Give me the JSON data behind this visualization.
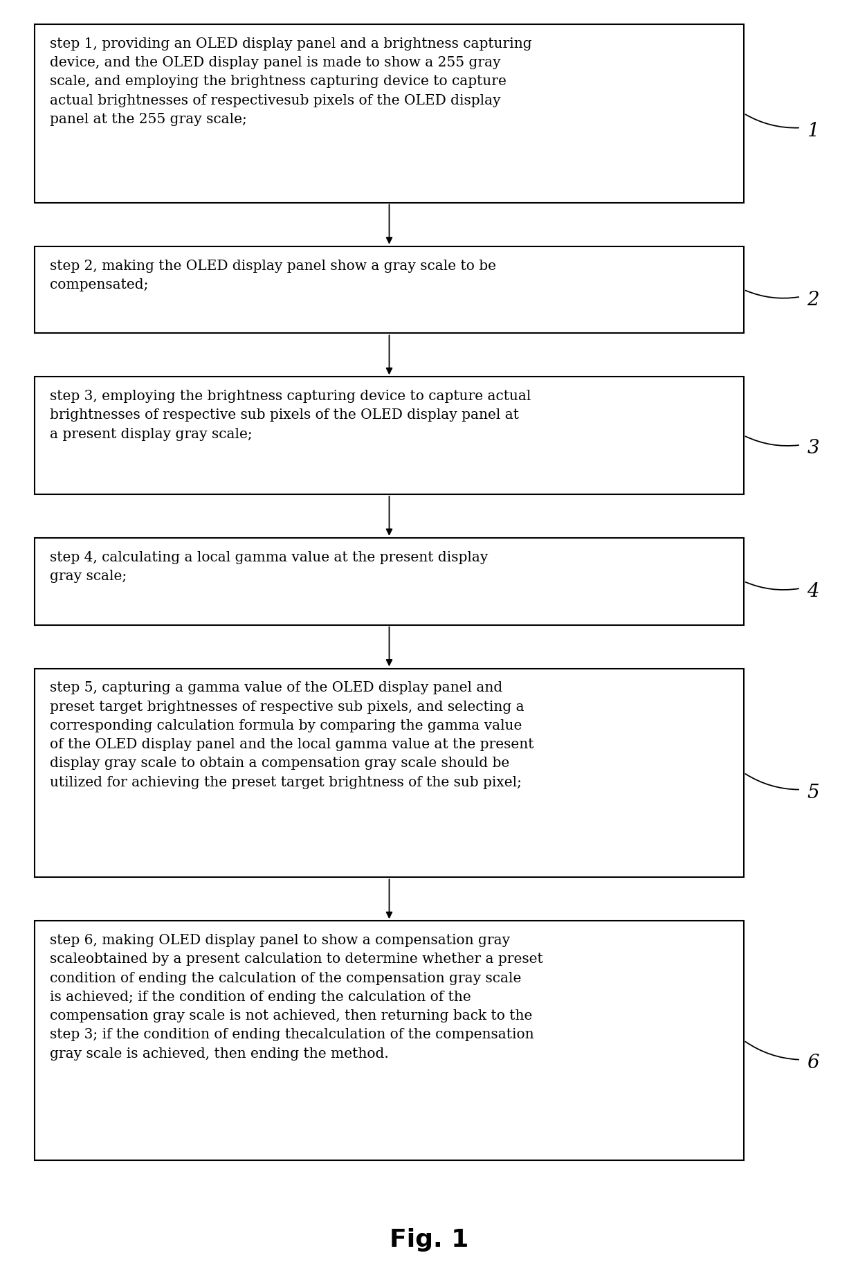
{
  "title": "Fig. 1",
  "background_color": "#ffffff",
  "box_edge_color": "#000000",
  "box_face_color": "#ffffff",
  "text_color": "#000000",
  "arrow_color": "#000000",
  "steps": [
    {
      "label": "1",
      "text": "step 1, providing an OLED display panel and a brightness capturing\ndevice, and the OLED display panel is made to show a 255 gray\nscale, and employing the brightness capturing device to capture\nactual brightnesses of respectivesub pixels of the OLED display\npanel at the 255 gray scale;"
    },
    {
      "label": "2",
      "text": "step 2, making the OLED display panel show a gray scale to be\ncompensated;"
    },
    {
      "label": "3",
      "text": "step 3, employing the brightness capturing device to capture actual\nbrightnesses of respective sub pixels of the OLED display panel at\na present display gray scale;"
    },
    {
      "label": "4",
      "text": "step 4, calculating a local gamma value at the present display\ngray scale;"
    },
    {
      "label": "5",
      "text": "step 5, capturing a gamma value of the OLED display panel and\npreset target brightnesses of respective sub pixels, and selecting a\ncorresponding calculation formula by comparing the gamma value\nof the OLED display panel and the local gamma value at the present\ndisplay gray scale to obtain a compensation gray scale should be\nutilized for achieving the preset target brightness of the sub pixel;"
    },
    {
      "label": "6",
      "text": "step 6, making OLED display panel to show a compensation gray\nscaleobtained by a present calculation to determine whether a preset\ncondition of ending the calculation of the compensation gray scale\nis achieved; if the condition of ending the calculation of the\ncompensation gray scale is not achieved, then returning back to the\nstep 3; if the condition of ending thecalculation of the compensation\ngray scale is achieved, then ending the method."
    }
  ],
  "line_counts": [
    5,
    2,
    3,
    2,
    6,
    7
  ],
  "fig_width": 12.4,
  "fig_height": 18.36,
  "font_size": 14.5,
  "label_font_size": 20,
  "fig_label_font_size": 26
}
